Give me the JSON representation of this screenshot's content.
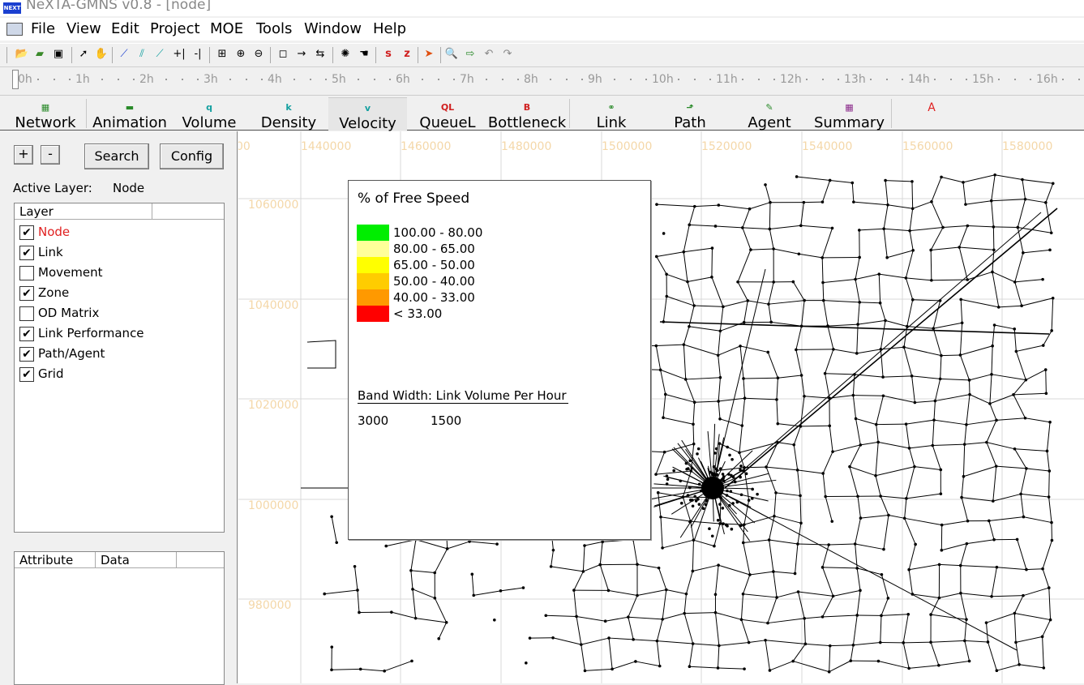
{
  "window": {
    "title": "NeXTA-GMNS v0.8 - [node]",
    "logo_text": "NEXT"
  },
  "menu": [
    "File",
    "View",
    "Edit",
    "Project",
    "MOE",
    "Tools",
    "Window",
    "Help"
  ],
  "toolbar": {
    "buttons": [
      "new-icon",
      "open-icon",
      "save-icon",
      "select-icon",
      "pan-hand-icon",
      "draw-link-icon",
      "draw-link-2-icon",
      "draw-link-3-icon",
      "split-icon",
      "split-2-icon",
      "fit-icon",
      "zoom-region-icon",
      "zoom-out-icon",
      "node-icon",
      "arrow-right-icon",
      "swap-icon",
      "bomb-icon",
      "hand-icon",
      "s-icon",
      "z-icon",
      "play-icon",
      "search-icon",
      "export-icon",
      "undo-icon",
      "redo-icon"
    ]
  },
  "timebar": {
    "ticks": [
      "0h",
      "1h",
      "2h",
      "3h",
      "4h",
      "5h",
      "6h",
      "7h",
      "8h",
      "9h",
      "10h",
      "11h",
      "12h",
      "13h",
      "14h",
      "15h",
      "16h"
    ]
  },
  "modes": [
    {
      "icon": "▦",
      "label": "Network"
    },
    {
      "icon": "▬",
      "label": "Animation"
    },
    {
      "icon": "q",
      "label": "Volume"
    },
    {
      "icon": "k",
      "label": "Density"
    },
    {
      "icon": "v",
      "label": "Velocity"
    },
    {
      "icon": "QL",
      "label": "QueueL"
    },
    {
      "icon": "B",
      "label": "Bottleneck"
    },
    {
      "icon": "⚭",
      "label": "Link"
    },
    {
      "icon": "⬏",
      "label": "Path"
    },
    {
      "icon": "✎",
      "label": "Agent"
    },
    {
      "icon": "▦",
      "label": "Summary"
    },
    {
      "icon": "A",
      "label": ""
    }
  ],
  "left": {
    "plus": "+",
    "minus": "-",
    "search": "Search",
    "config": "Config",
    "active_layer_label": "Active Layer:",
    "active_layer_value": "Node",
    "layer_header": "Layer",
    "layers": [
      {
        "label": "Node",
        "checked": "✔"
      },
      {
        "label": "Link",
        "checked": "✔"
      },
      {
        "label": "Movement",
        "checked": ""
      },
      {
        "label": "Zone",
        "checked": "✔"
      },
      {
        "label": "OD Matrix",
        "checked": ""
      },
      {
        "label": "Link Performance",
        "checked": "✔"
      },
      {
        "label": "Path/Agent",
        "checked": "✔"
      },
      {
        "label": "Grid",
        "checked": "✔"
      }
    ],
    "attr_header": "Attribute",
    "data_header": "Data"
  },
  "map": {
    "x_labels": [
      "00",
      "1440000",
      "1460000",
      "1480000",
      "1500000",
      "1520000",
      "1540000",
      "1560000",
      "1580000"
    ],
    "y_labels": [
      "1060000",
      "1040000",
      "1020000",
      "1000000",
      "980000"
    ]
  },
  "legend": {
    "title": "% of Free Speed",
    "items": [
      {
        "color": "#00ee00",
        "label": "100.00 - 80.00"
      },
      {
        "color": "#ffff99",
        "label": "80.00 - 65.00"
      },
      {
        "color": "#ffff00",
        "label": "65.00 - 50.00"
      },
      {
        "color": "#ffcc00",
        "label": "50.00 - 40.00"
      },
      {
        "color": "#ff9900",
        "label": "40.00 - 33.00"
      },
      {
        "color": "#ff0000",
        "label": "< 33.00"
      }
    ],
    "band_title": "Band Width: Link Volume Per Hour",
    "band_a": "3000",
    "band_b": "1500"
  }
}
